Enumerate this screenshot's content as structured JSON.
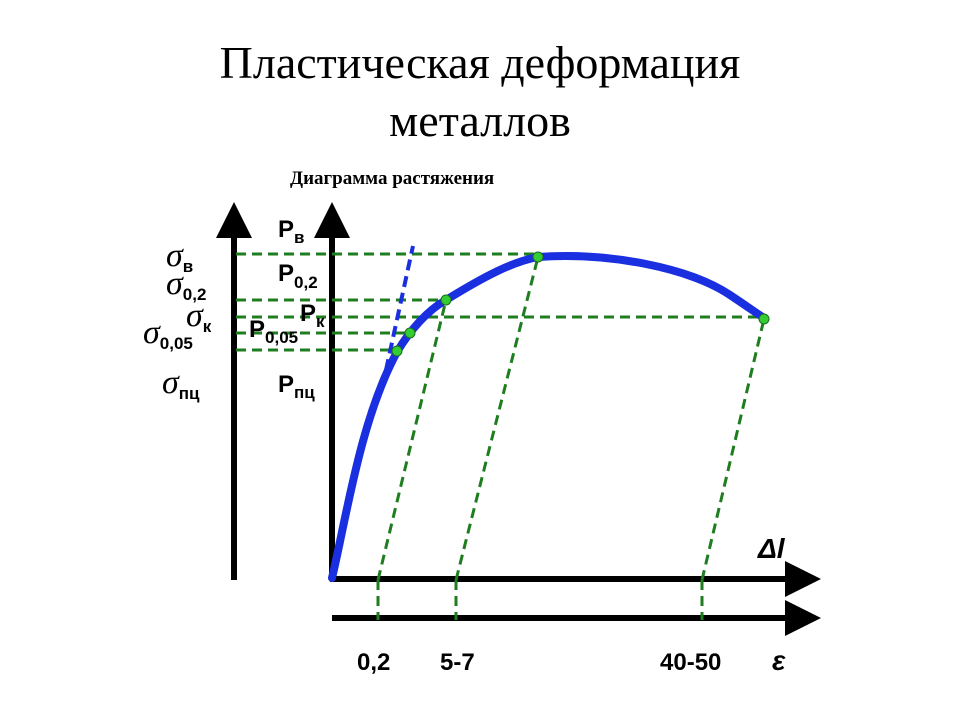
{
  "title": {
    "line1": "Пластическая деформация",
    "line2": "металлов"
  },
  "subtitle": "Диаграмма растяжения",
  "stress_labels": {
    "sigma_v": {
      "symbol": "σ",
      "sub": "в"
    },
    "sigma_02": {
      "symbol": "σ",
      "sub": "0,2"
    },
    "sigma_005": {
      "symbol": "σ",
      "sub": "0,05"
    },
    "sigma_k": {
      "symbol": "σ",
      "sub": "к"
    },
    "sigma_pc": {
      "symbol": "σ",
      "sub": "пц"
    }
  },
  "force_labels": {
    "p_v": {
      "symbol": "P",
      "sub": "в"
    },
    "p_02": {
      "symbol": "P",
      "sub": "0,2"
    },
    "p_005": {
      "symbol": "P",
      "sub": "0,05"
    },
    "p_k": {
      "symbol": "P",
      "sub": "к"
    },
    "p_pc": {
      "symbol": "P",
      "sub": "пц"
    }
  },
  "axis_labels": {
    "delta_l": "Δl",
    "epsilon": "ε"
  },
  "strain_ticks": [
    "0,2",
    "5-7",
    "40-50"
  ],
  "colors": {
    "curve": "#1a2fe0",
    "guides": "#1e7d1e",
    "points": "#33cc33",
    "axes": "#000000"
  }
}
